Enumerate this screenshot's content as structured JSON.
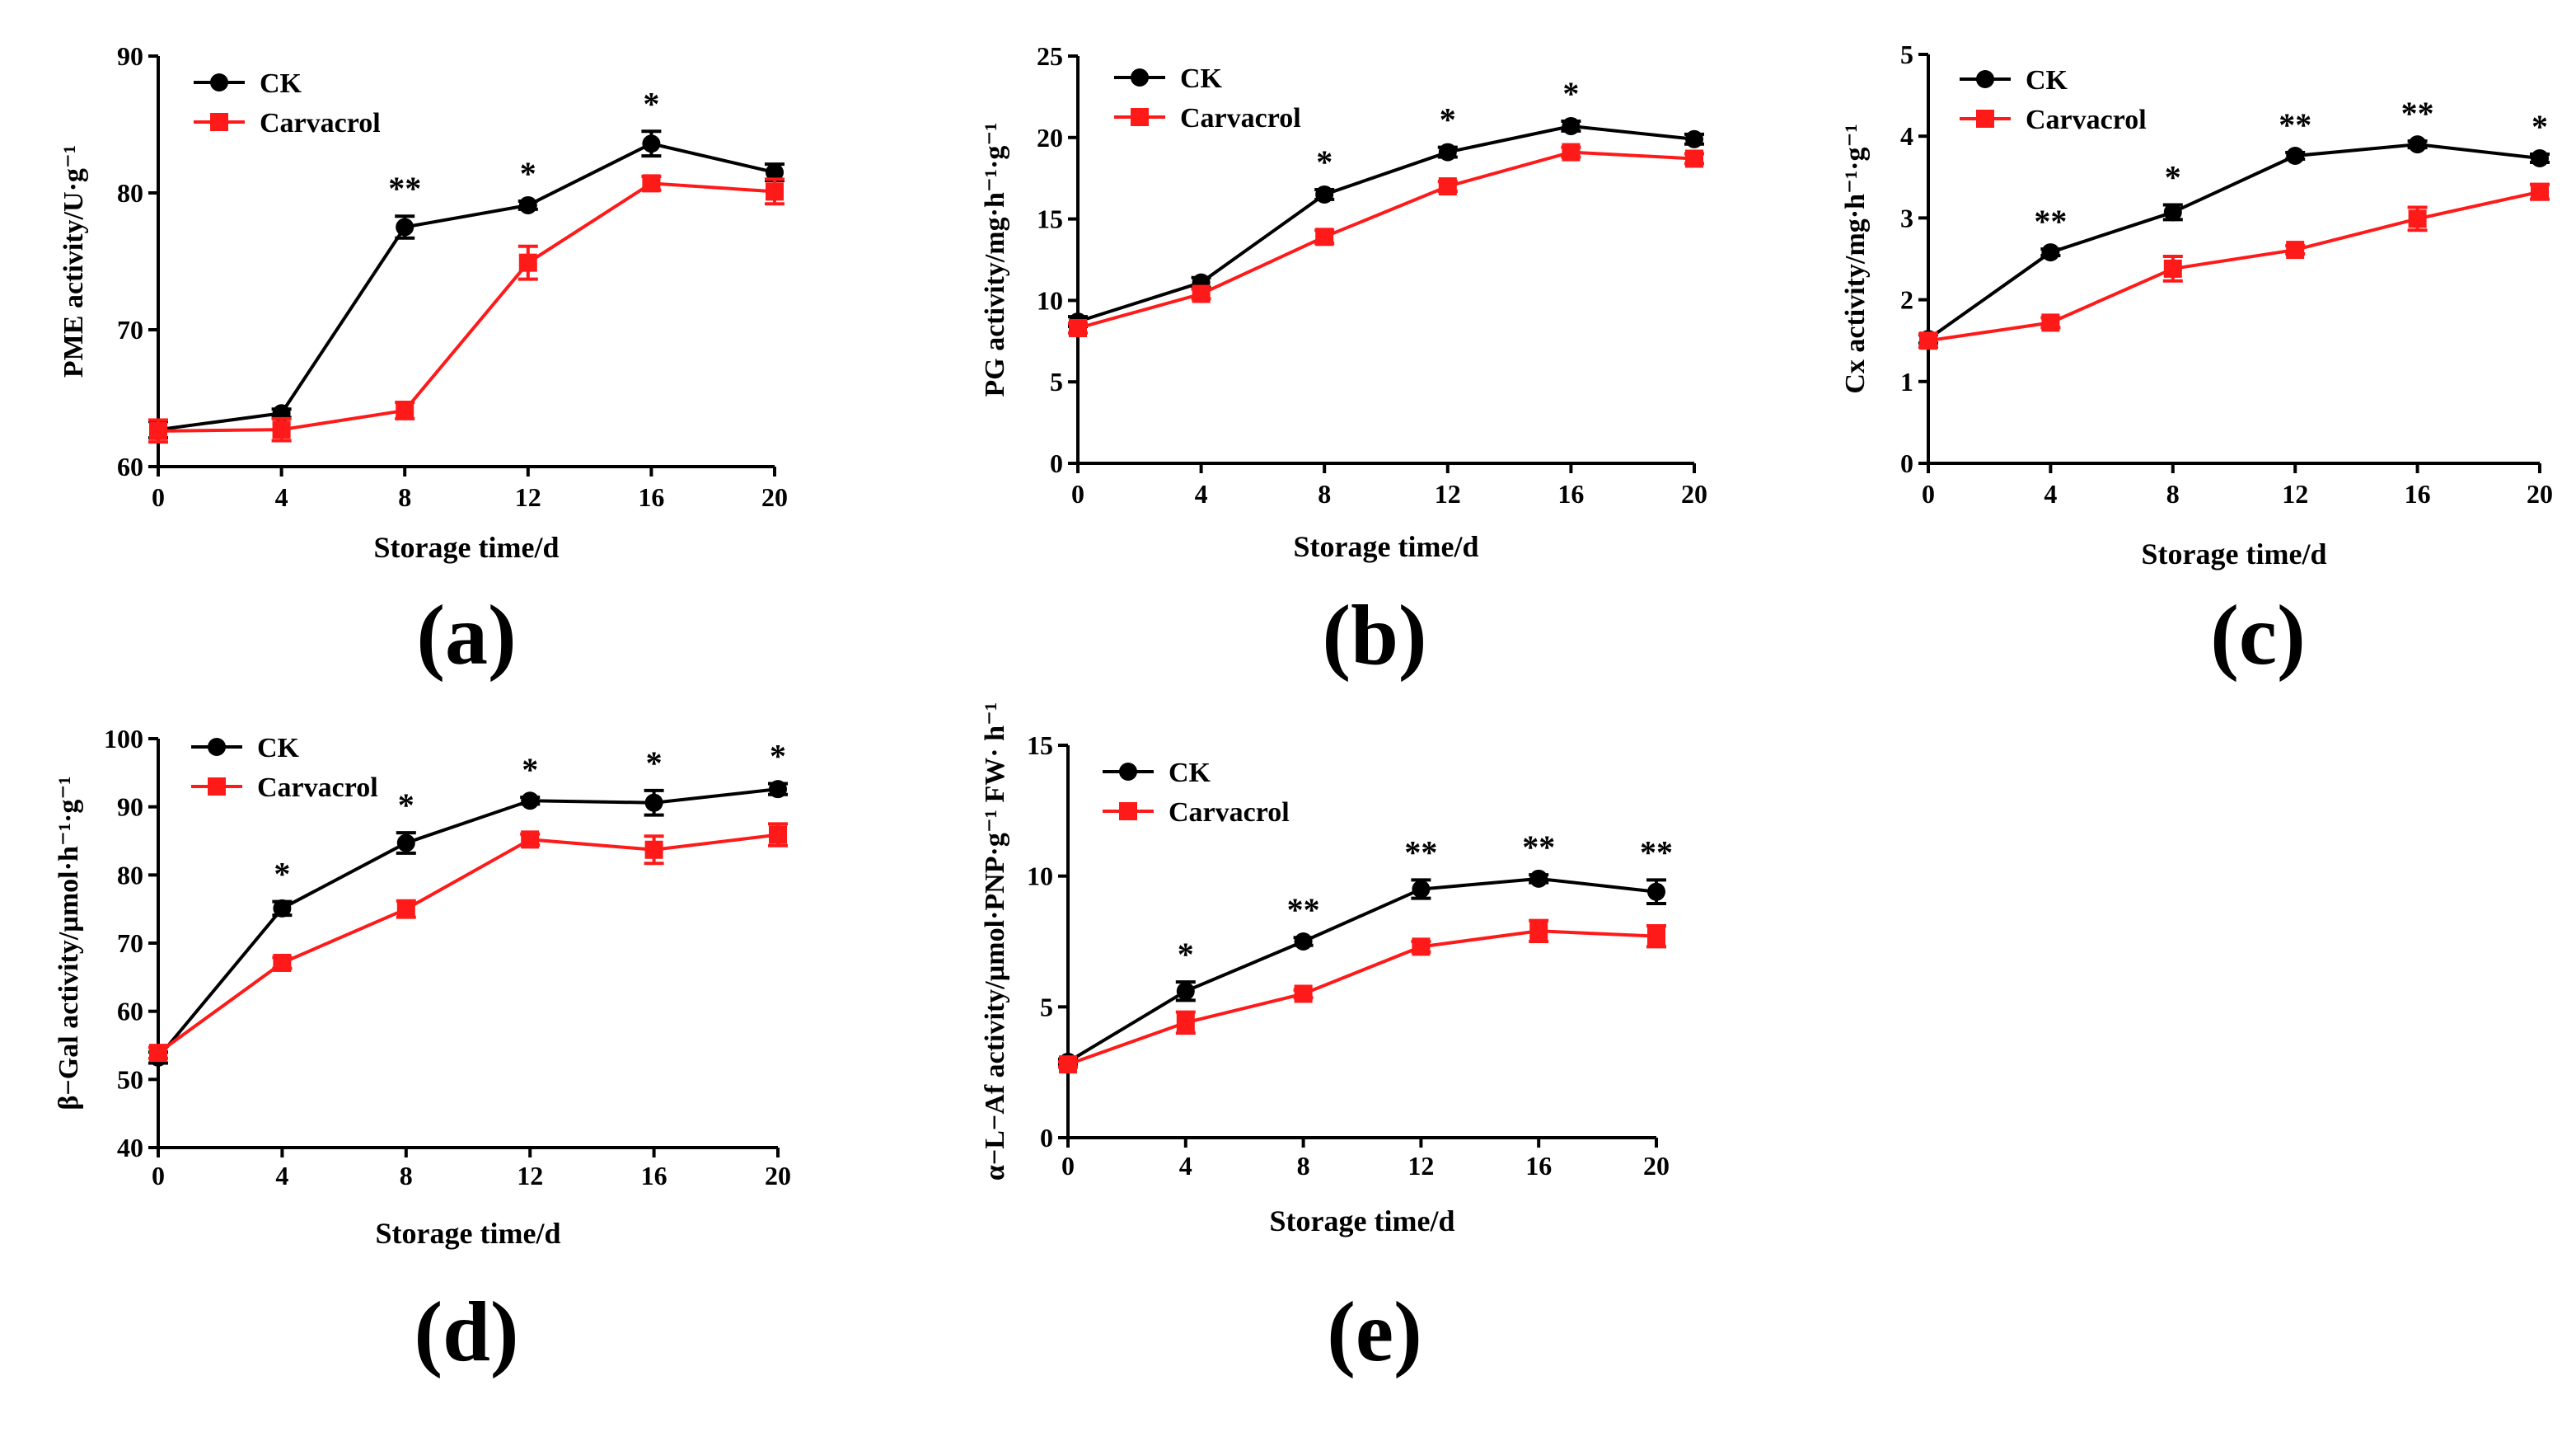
{
  "colors": {
    "ck": "#000000",
    "carvacrol": "#ff1a1a",
    "axis": "#000000"
  },
  "chart_data": [
    {
      "type": "line",
      "panel": "(a)",
      "xlabel": "Storage time/d",
      "ylabel": "PME activity/U·g⁻¹",
      "x": [
        0,
        4,
        8,
        12,
        16,
        20
      ],
      "xlim": [
        0,
        20
      ],
      "ylim": [
        60,
        90
      ],
      "xticks": [
        "0",
        "4",
        "8",
        "12",
        "16",
        "20"
      ],
      "yticks": [
        "60",
        "70",
        "80",
        "90"
      ],
      "yticks_values": [
        60,
        70,
        80,
        90
      ],
      "series": [
        {
          "name": "CK",
          "values": [
            62.7,
            63.9,
            77.5,
            79.1,
            83.6,
            81.5
          ],
          "err": [
            0.6,
            0.3,
            0.8,
            0.3,
            0.9,
            0.6
          ]
        },
        {
          "name": "Carvacrol",
          "values": [
            62.6,
            62.7,
            64.1,
            74.9,
            80.7,
            80.1
          ],
          "err": [
            0.8,
            0.8,
            0.6,
            1.2,
            0.5,
            0.9
          ]
        }
      ],
      "significance": [
        "",
        "",
        "**",
        "*",
        "*",
        ""
      ]
    },
    {
      "type": "line",
      "panel": "(b)",
      "xlabel": "Storage time/d",
      "ylabel": "PG activity/mg·h⁻¹·g⁻¹",
      "x": [
        0,
        4,
        8,
        12,
        16,
        20
      ],
      "xlim": [
        0,
        20
      ],
      "ylim": [
        0,
        25
      ],
      "xticks": [
        "0",
        "4",
        "8",
        "12",
        "16",
        "20"
      ],
      "yticks": [
        "0",
        "5",
        "10",
        "15",
        "20",
        "25"
      ],
      "yticks_values": [
        0,
        5,
        10,
        15,
        20,
        25
      ],
      "series": [
        {
          "name": "CK",
          "values": [
            8.7,
            11.1,
            16.5,
            19.1,
            20.7,
            19.9
          ],
          "err": [
            0.3,
            0.3,
            0.3,
            0.3,
            0.3,
            0.3
          ]
        },
        {
          "name": "Carvacrol",
          "values": [
            8.3,
            10.4,
            13.9,
            17.0,
            19.1,
            18.7
          ],
          "err": [
            0.3,
            0.3,
            0.4,
            0.3,
            0.3,
            0.3
          ]
        }
      ],
      "significance": [
        "",
        "",
        "*",
        "*",
        "*",
        ""
      ]
    },
    {
      "type": "line",
      "panel": "(c)",
      "xlabel": "Storage time/d",
      "ylabel": "Cx activity/mg·h⁻¹·g⁻¹",
      "x": [
        0,
        4,
        8,
        12,
        16,
        20
      ],
      "xlim": [
        0,
        20
      ],
      "ylim": [
        0,
        5
      ],
      "xticks": [
        "0",
        "4",
        "8",
        "12",
        "16",
        "20"
      ],
      "yticks": [
        "0",
        "1",
        "2",
        "3",
        "4",
        "5"
      ],
      "yticks_values": [
        0,
        1,
        2,
        3,
        4,
        5
      ],
      "series": [
        {
          "name": "CK",
          "values": [
            1.52,
            2.58,
            3.07,
            3.76,
            3.9,
            3.73
          ],
          "err": [
            0.05,
            0.04,
            0.09,
            0.04,
            0.04,
            0.05
          ]
        },
        {
          "name": "Carvacrol",
          "values": [
            1.5,
            1.72,
            2.38,
            2.61,
            2.99,
            3.32
          ],
          "err": [
            0.08,
            0.06,
            0.15,
            0.05,
            0.14,
            0.09
          ]
        }
      ],
      "significance": [
        "",
        "**",
        "*",
        "**",
        "**",
        "*"
      ]
    },
    {
      "type": "line",
      "panel": "(d)",
      "xlabel": "Storage time/d",
      "ylabel": "β−Gal activity/µmol·h⁻¹·g⁻¹",
      "x": [
        0,
        4,
        8,
        12,
        16,
        20
      ],
      "xlim": [
        0,
        20
      ],
      "ylim": [
        40,
        100
      ],
      "xticks": [
        "0",
        "4",
        "8",
        "12",
        "16",
        "20"
      ],
      "yticks": [
        "40",
        "50",
        "60",
        "70",
        "80",
        "90",
        "100"
      ],
      "yticks_values": [
        40,
        50,
        60,
        70,
        80,
        90,
        100
      ],
      "series": [
        {
          "name": "CK",
          "values": [
            53.2,
            75.1,
            84.7,
            90.9,
            90.6,
            92.6
          ],
          "err": [
            0.8,
            1.0,
            1.5,
            0.5,
            1.8,
            0.8
          ]
        },
        {
          "name": "Carvacrol",
          "values": [
            53.9,
            67.1,
            75.0,
            85.2,
            83.7,
            85.9
          ],
          "err": [
            0.8,
            0.8,
            1.2,
            0.8,
            2.0,
            1.6
          ]
        }
      ],
      "significance": [
        "",
        "*",
        "*",
        "*",
        "*",
        "*"
      ]
    },
    {
      "type": "line",
      "panel": "(e)",
      "xlabel": "Storage time/d",
      "ylabel": "α−L−Af activity/µmol·PNP·g⁻¹ FW· h⁻¹",
      "x": [
        0,
        4,
        8,
        12,
        16,
        20
      ],
      "xlim": [
        0,
        20
      ],
      "ylim": [
        0,
        15
      ],
      "xticks": [
        "0",
        "4",
        "8",
        "12",
        "16",
        "20"
      ],
      "yticks": [
        "0",
        "5",
        "10",
        "15"
      ],
      "yticks_values": [
        0,
        5,
        10,
        15
      ],
      "series": [
        {
          "name": "CK",
          "values": [
            2.9,
            5.6,
            7.5,
            9.5,
            9.9,
            9.4
          ],
          "err": [
            0.1,
            0.35,
            0.15,
            0.35,
            0.15,
            0.45
          ]
        },
        {
          "name": "Carvacrol",
          "values": [
            2.8,
            4.4,
            5.5,
            7.3,
            7.9,
            7.7
          ],
          "err": [
            0.1,
            0.4,
            0.15,
            0.2,
            0.4,
            0.4
          ]
        }
      ],
      "significance": [
        "",
        "*",
        "**",
        "**",
        "**",
        "**"
      ]
    }
  ]
}
